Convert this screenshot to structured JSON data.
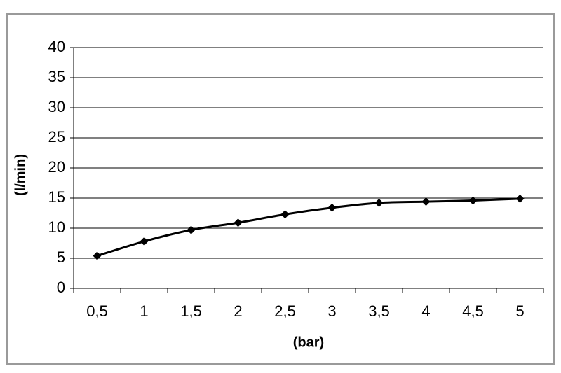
{
  "chart_data": {
    "type": "line",
    "categories": [
      "0,5",
      "1",
      "1,5",
      "2",
      "2,5",
      "3",
      "3,5",
      "4",
      "4,5",
      "5"
    ],
    "series": [
      {
        "color": "#000000",
        "values": [
          5.4,
          7.8,
          9.7,
          10.9,
          12.3,
          13.4,
          14.2,
          14.4,
          14.6,
          14.9
        ]
      }
    ],
    "ylim": [
      0,
      40
    ],
    "yticks": [
      0,
      5,
      10,
      15,
      20,
      25,
      30,
      35,
      40
    ],
    "grid": true,
    "y_label": "(l/min)",
    "x_label": "(bar)"
  }
}
